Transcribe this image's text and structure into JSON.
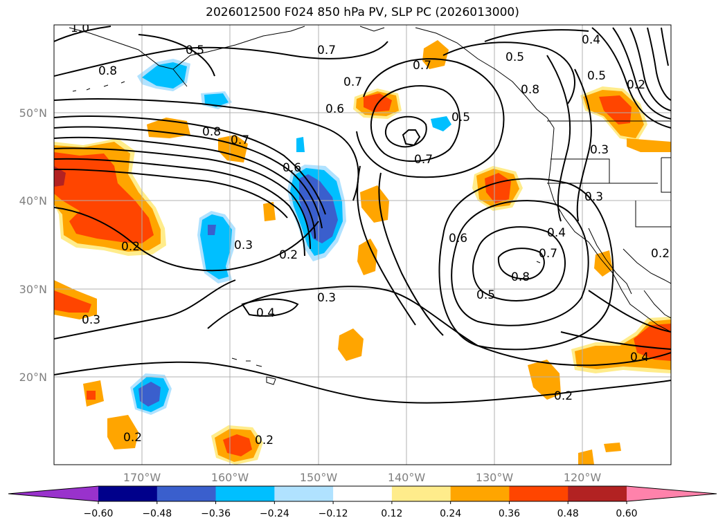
{
  "title": "2026012500 F024 850 hPa PV, SLP PC (2026013000)",
  "latitude_labels": [
    "50°N",
    "40°N",
    "30°N",
    "20°N"
  ],
  "longitude_labels": [
    "170°W",
    "160°W",
    "150°W",
    "140°W",
    "130°W",
    "120°W"
  ],
  "contour_labels": [
    "1.0",
    "0.5",
    "0.8",
    "0.7",
    "0.7",
    "0.6",
    "0.8",
    "0.7",
    "0.6",
    "0.5",
    "0.7",
    "0.8",
    "0.4",
    "0.5",
    "0.3",
    "0.3",
    "0.2",
    "0.3",
    "0.2",
    "0.4",
    "0.3",
    "0.6",
    "0.4",
    "0.8",
    "0.7",
    "0.5",
    "0.3",
    "0.2",
    "0.2",
    "0.2",
    "0.4",
    "0.2",
    "0.5",
    "0.7",
    "0.2"
  ],
  "colorbar": {
    "ticks": [
      "−0.60",
      "−0.48",
      "−0.36",
      "−0.24",
      "−0.12",
      "0.12",
      "0.24",
      "0.36",
      "0.48",
      "0.60"
    ],
    "colors": [
      "#9932cc",
      "#00008b",
      "#3a5fcd",
      "#00bfff",
      "#b0e2ff",
      "#ffffff",
      "#ffec8b",
      "#ffa500",
      "#ff4500",
      "#b22222",
      "#ff82ab"
    ]
  },
  "fill_colors": {
    "light_yellow": "#ffec8b",
    "orange": "#ffa500",
    "red_orange": "#ff4500",
    "light_blue": "#b0e2ff",
    "deep_sky_blue": "#00bfff",
    "royal_blue": "#3a5fcd"
  }
}
